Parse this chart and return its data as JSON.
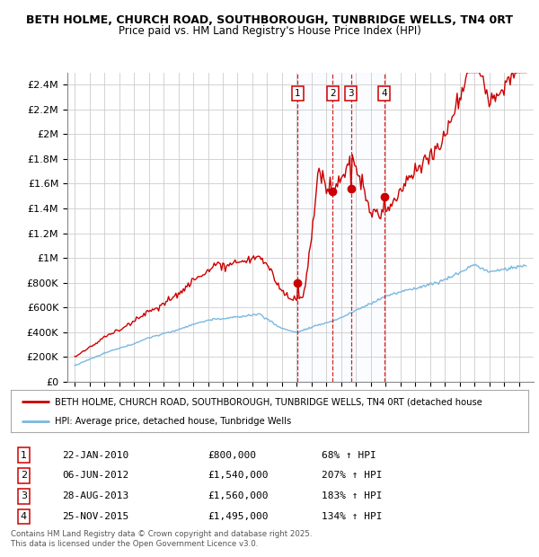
{
  "title1": "BETH HOLME, CHURCH ROAD, SOUTHBOROUGH, TUNBRIDGE WELLS, TN4 0RT",
  "title2": "Price paid vs. HM Land Registry's House Price Index (HPI)",
  "ylim": [
    0,
    2500000
  ],
  "yticks": [
    0,
    200000,
    400000,
    600000,
    800000,
    1000000,
    1200000,
    1400000,
    1600000,
    1800000,
    2000000,
    2200000,
    2400000
  ],
  "ytick_labels": [
    "£0",
    "£200K",
    "£400K",
    "£600K",
    "£800K",
    "£1M",
    "£1.2M",
    "£1.4M",
    "£1.6M",
    "£1.8M",
    "£2M",
    "£2.2M",
    "£2.4M"
  ],
  "hpi_color": "#7ab8e0",
  "price_color": "#cc0000",
  "shade_color": "#ddeeff",
  "background_color": "#ffffff",
  "grid_color": "#cccccc",
  "xlim_left": 1994.5,
  "xlim_right": 2026.0,
  "transactions": [
    {
      "num": 1,
      "date_num": 2010.055,
      "price": 800000,
      "label": "22-JAN-2010",
      "pct": "68% ↑ HPI"
    },
    {
      "num": 2,
      "date_num": 2012.43,
      "price": 1540000,
      "label": "06-JUN-2012",
      "pct": "207% ↑ HPI"
    },
    {
      "num": 3,
      "date_num": 2013.655,
      "price": 1560000,
      "label": "28-AUG-2013",
      "pct": "183% ↑ HPI"
    },
    {
      "num": 4,
      "date_num": 2015.9,
      "price": 1495000,
      "label": "25-NOV-2015",
      "pct": "134% ↑ HPI"
    }
  ],
  "legend_line1": "BETH HOLME, CHURCH ROAD, SOUTHBOROUGH, TUNBRIDGE WELLS, TN4 0RT (detached house",
  "legend_line2": "HPI: Average price, detached house, Tunbridge Wells",
  "footer": "Contains HM Land Registry data © Crown copyright and database right 2025.\nThis data is licensed under the Open Government Licence v3.0."
}
